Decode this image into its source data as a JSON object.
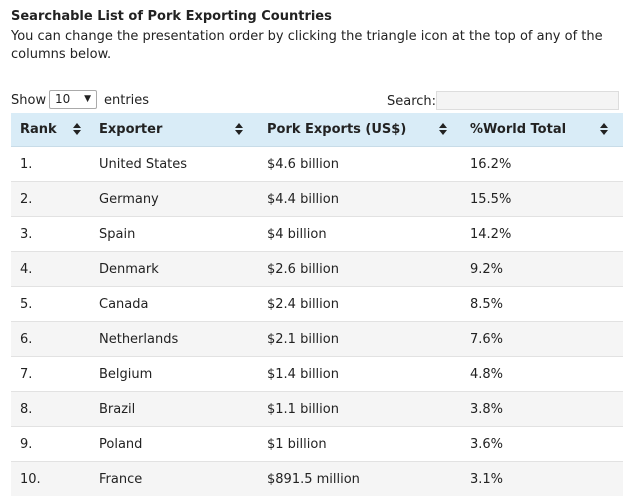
{
  "heading": {
    "title": "Searchable List of Pork Exporting Countries",
    "description": "You can change the presentation order by clicking the triangle icon at the top of any of the columns below."
  },
  "controls": {
    "show_label": "Show",
    "page_size": "10",
    "entries_label": "entries",
    "search_label": "Search:",
    "search_value": ""
  },
  "table": {
    "columns": [
      "Rank",
      "Exporter",
      "Pork Exports (US$)",
      "%World Total"
    ],
    "rows": [
      {
        "rank": "1.",
        "exporter": "United States",
        "exports": "$4.6 billion",
        "world": "16.2%"
      },
      {
        "rank": "2.",
        "exporter": "Germany",
        "exports": "$4.4 billion",
        "world": "15.5%"
      },
      {
        "rank": "3.",
        "exporter": "Spain",
        "exports": "$4 billion",
        "world": "14.2%"
      },
      {
        "rank": "4.",
        "exporter": "Denmark",
        "exports": "$2.6 billion",
        "world": "9.2%"
      },
      {
        "rank": "5.",
        "exporter": "Canada",
        "exports": "$2.4 billion",
        "world": "8.5%"
      },
      {
        "rank": "6.",
        "exporter": "Netherlands",
        "exports": "$2.1 billion",
        "world": "7.6%"
      },
      {
        "rank": "7.",
        "exporter": "Belgium",
        "exports": "$1.4 billion",
        "world": "4.8%"
      },
      {
        "rank": "8.",
        "exporter": "Brazil",
        "exports": "$1.1 billion",
        "world": "3.8%"
      },
      {
        "rank": "9.",
        "exporter": "Poland",
        "exports": "$1 billion",
        "world": "3.6%"
      },
      {
        "rank": "10.",
        "exporter": "France",
        "exports": "$891.5 million",
        "world": "3.1%"
      }
    ]
  },
  "colors": {
    "header_bg": "#d9ecf7",
    "stripe_bg": "#f5f5f5"
  },
  "icons": {
    "sort": "sort-both-icon",
    "dropdown": "caret-down-icon"
  }
}
